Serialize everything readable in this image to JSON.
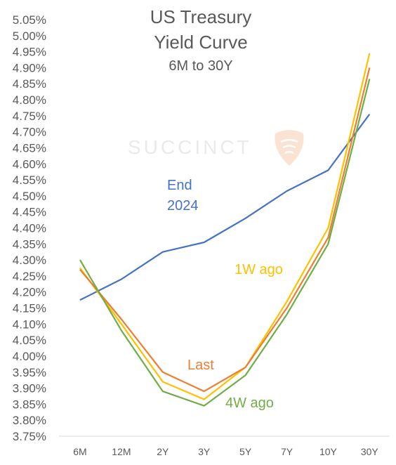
{
  "title_line1": "US Treasury",
  "title_line2": "Yield Curve",
  "subtitle": "6M to 30Y",
  "watermark": "SUCCINCT",
  "chart_data": {
    "type": "line",
    "categories": [
      "6M",
      "12M",
      "2Y",
      "3Y",
      "5Y",
      "7Y",
      "10Y",
      "30Y"
    ],
    "ylim": [
      3.75,
      5.05
    ],
    "yticks": [
      "3.75%",
      "3.80%",
      "3.85%",
      "3.90%",
      "3.95%",
      "4.00%",
      "4.05%",
      "4.10%",
      "4.15%",
      "4.20%",
      "4.25%",
      "4.30%",
      "4.35%",
      "4.40%",
      "4.45%",
      "4.50%",
      "4.55%",
      "4.60%",
      "4.65%",
      "4.70%",
      "4.75%",
      "4.80%",
      "4.85%",
      "4.90%",
      "4.95%",
      "5.00%",
      "5.05%"
    ],
    "grid": false,
    "legend": "none",
    "series": [
      {
        "name": "End 2024",
        "label_lines": [
          "End",
          "2024"
        ],
        "color": "#4472C4",
        "values": [
          4.175,
          4.24,
          4.325,
          4.355,
          4.43,
          4.515,
          4.58,
          4.755
        ]
      },
      {
        "name": "1W ago",
        "label_lines": [
          "1W ago"
        ],
        "color": "#FFC000",
        "values": [
          4.275,
          4.1,
          3.92,
          3.865,
          3.965,
          4.17,
          4.4,
          4.945
        ]
      },
      {
        "name": "Last",
        "label_lines": [
          "Last"
        ],
        "color": "#ED7D31",
        "values": [
          4.27,
          4.115,
          3.95,
          3.89,
          3.965,
          4.15,
          4.37,
          4.9
        ]
      },
      {
        "name": "4W ago",
        "label_lines": [
          "4W ago"
        ],
        "color": "#70AD47",
        "values": [
          4.3,
          4.08,
          3.89,
          3.845,
          3.94,
          4.13,
          4.35,
          4.865
        ]
      }
    ]
  }
}
